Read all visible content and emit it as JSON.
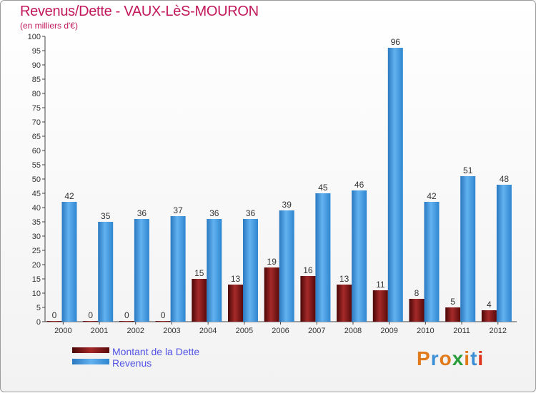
{
  "chart_data": {
    "type": "bar",
    "title": "Revenus/Dette - VAUX-LèS-MOURON",
    "subtitle": "(en milliers d'€)",
    "categories": [
      "2000",
      "2001",
      "2002",
      "2003",
      "2004",
      "2005",
      "2006",
      "2007",
      "2008",
      "2009",
      "2010",
      "2011",
      "2012"
    ],
    "series": [
      {
        "name": "Montant de la Dette",
        "color": "#7a1010",
        "values": [
          0,
          0,
          0,
          0,
          15,
          13,
          19,
          16,
          13,
          11,
          8,
          5,
          4
        ]
      },
      {
        "name": "Revenus",
        "color": "#3d92d8",
        "values": [
          42,
          35,
          36,
          37,
          36,
          36,
          39,
          45,
          46,
          96,
          42,
          51,
          48
        ]
      }
    ],
    "ylim": [
      0,
      100
    ],
    "ytick_step": 5,
    "grid": false,
    "legend_position": "bottom-left"
  },
  "logo": {
    "text": "Proxiti",
    "colors": [
      "#e07a1a",
      "#3d8fd6",
      "#e07a1a",
      "#2a9d3c",
      "#e07a1a",
      "#3d8fd6",
      "#e0341a"
    ]
  }
}
